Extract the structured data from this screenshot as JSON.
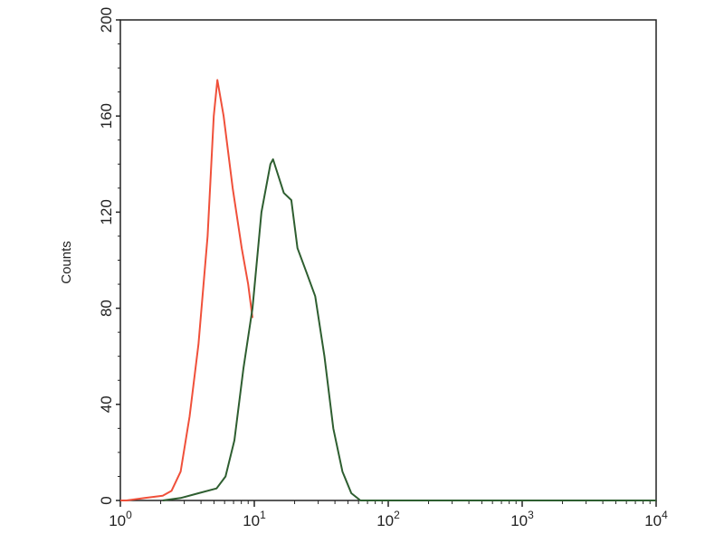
{
  "chart_data": {
    "type": "line",
    "title": "",
    "xlabel": "",
    "ylabel": "Counts",
    "xscale": "log",
    "xlim": [
      1,
      10000
    ],
    "ylim": [
      0,
      200
    ],
    "grid": false,
    "xticks": [
      {
        "value": 1,
        "base": "10",
        "exp": "0"
      },
      {
        "value": 10,
        "base": "10",
        "exp": "1"
      },
      {
        "value": 100,
        "base": "10",
        "exp": "2"
      },
      {
        "value": 1000,
        "base": "10",
        "exp": "3"
      },
      {
        "value": 10000,
        "base": "10",
        "exp": "4"
      }
    ],
    "yticks": [
      0,
      40,
      80,
      120,
      160,
      200
    ],
    "series": [
      {
        "color": "#f0503a",
        "x": [
          1.0,
          1.11,
          1.52,
          2.07,
          2.41,
          2.82,
          3.29,
          3.83,
          4.48,
          4.98,
          5.3,
          5.9,
          6.9,
          8.06,
          9.0,
          9.7
        ],
        "y": [
          0,
          0,
          1,
          2,
          4,
          12,
          35,
          65,
          110,
          160,
          175,
          160,
          130,
          105,
          90,
          76
        ]
      },
      {
        "color": "#2e5e30",
        "x": [
          2.07,
          2.82,
          3.83,
          5.23,
          6.1,
          7.1,
          8.3,
          9.7,
          11.3,
          13.2,
          13.8,
          16.6,
          18.9,
          21,
          24.5,
          28.5,
          33.4,
          38.9,
          45.5,
          53,
          62,
          72,
          10000
        ],
        "y": [
          0,
          1,
          3,
          5,
          10,
          25,
          55,
          80,
          120,
          140,
          142,
          128,
          125,
          105,
          95,
          85,
          60,
          30,
          12,
          3,
          0,
          0,
          0
        ]
      }
    ]
  }
}
